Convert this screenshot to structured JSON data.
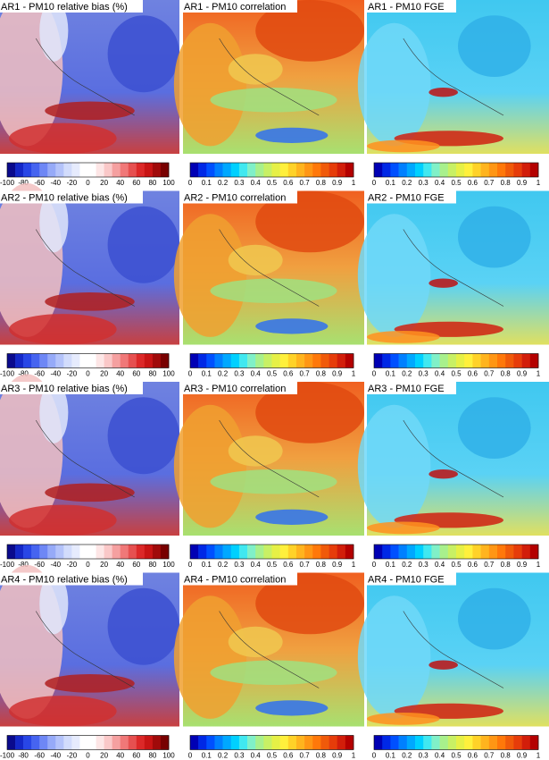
{
  "rows": [
    {
      "panels": [
        {
          "title": "AR1 - PM10   relative bias   (%)"
        },
        {
          "title": "AR1 - PM10   correlation"
        },
        {
          "title": "AR1 - PM10 FGE"
        }
      ]
    },
    {
      "panels": [
        {
          "title": "AR2 - PM10   relative bias   (%)"
        },
        {
          "title": "AR2 - PM10   correlation"
        },
        {
          "title": "AR2 - PM10 FGE"
        }
      ]
    },
    {
      "panels": [
        {
          "title": "AR3 - PM10   relative bias   (%)"
        },
        {
          "title": "AR3 - PM10   correlation"
        },
        {
          "title": "AR3 - PM10 FGE"
        }
      ]
    },
    {
      "panels": [
        {
          "title": "AR4 - PM10   relative bias   (%)"
        },
        {
          "title": "AR4 - PM10   correlation"
        },
        {
          "title": "AR4 - PM10 FGE"
        }
      ]
    }
  ],
  "colorbars": [
    {
      "ticks": [
        "-100",
        "-80",
        "-60",
        "-40",
        "-20",
        "0",
        "20",
        "40",
        "60",
        "80",
        "100"
      ],
      "colors": [
        "#0a0a8c",
        "#1428c8",
        "#2846e6",
        "#4664f0",
        "#6e87f5",
        "#96aaf8",
        "#b4c3fa",
        "#d2dcfc",
        "#e6ebfd",
        "#ffffff",
        "#ffffff",
        "#fde6e6",
        "#fac8c8",
        "#f5a0a0",
        "#f07878",
        "#e65050",
        "#dc2828",
        "#c81414",
        "#a00a0a",
        "#780000"
      ]
    },
    {
      "ticks": [
        "0",
        "0.1",
        "0.2",
        "0.3",
        "0.4",
        "0.5",
        "0.6",
        "0.7",
        "0.8",
        "0.9",
        "1"
      ],
      "colors": [
        "#0000b4",
        "#0028e6",
        "#0050ff",
        "#0080ff",
        "#00a8ff",
        "#00d0ff",
        "#40e8f0",
        "#80f0c8",
        "#a8f08c",
        "#c8f064",
        "#e6f046",
        "#fff03c",
        "#ffd228",
        "#ffb41e",
        "#ff9614",
        "#ff780a",
        "#f05a0a",
        "#e63c0a",
        "#d21e0a",
        "#b40000"
      ]
    },
    {
      "ticks": [
        "0",
        "0.1",
        "0.2",
        "0.3",
        "0.4",
        "0.5",
        "0.6",
        "0.7",
        "0.8",
        "0.9",
        "1"
      ],
      "colors": [
        "#0000b4",
        "#0028e6",
        "#0050ff",
        "#0080ff",
        "#00a8ff",
        "#00d0ff",
        "#40e8f0",
        "#80f0c8",
        "#a8f08c",
        "#c8f064",
        "#e6f046",
        "#fff03c",
        "#ffd228",
        "#ffb41e",
        "#ff9614",
        "#ff780a",
        "#f05a0a",
        "#e63c0a",
        "#d21e0a",
        "#b40000"
      ]
    }
  ]
}
